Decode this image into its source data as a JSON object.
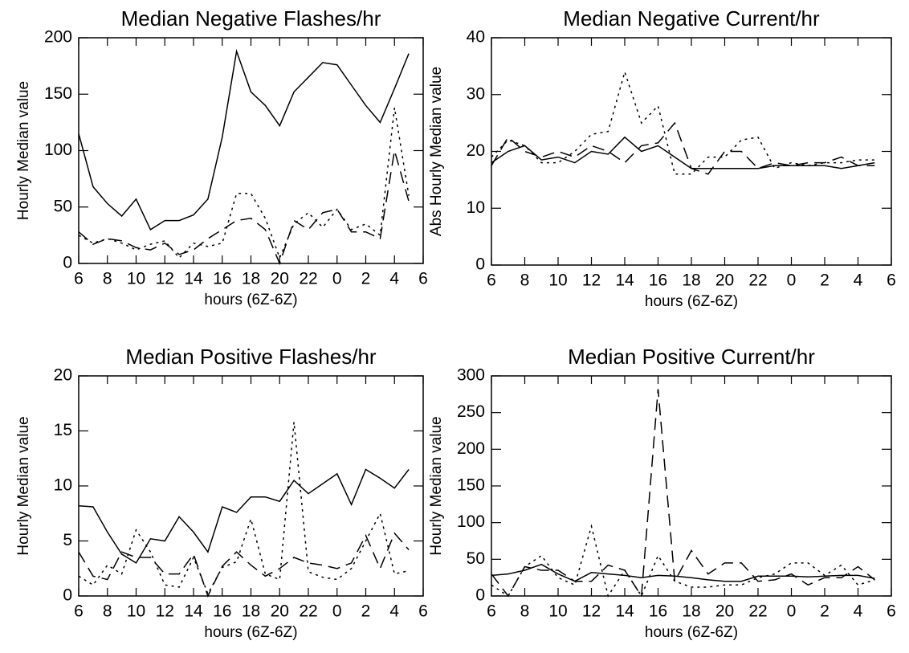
{
  "chart_data": [
    {
      "type": "line",
      "title": "Median Negative Flashes/hr",
      "xlabel": "hours (6Z-6Z)",
      "ylabel": "Hourly Median value",
      "x": [
        6,
        7,
        8,
        9,
        10,
        11,
        12,
        13,
        14,
        15,
        16,
        17,
        18,
        19,
        20,
        21,
        22,
        23,
        24,
        25,
        26,
        27,
        28,
        29
      ],
      "xlim": [
        6,
        30
      ],
      "xticks": [
        6,
        8,
        10,
        12,
        14,
        16,
        18,
        20,
        22,
        {
          "value": 24,
          "label": "0"
        },
        {
          "value": 26,
          "label": "2"
        },
        {
          "value": 28,
          "label": "4"
        },
        {
          "value": 30,
          "label": "6"
        }
      ],
      "ylim": [
        0,
        200
      ],
      "yticks": [
        0,
        50,
        100,
        150,
        200
      ],
      "series": [
        {
          "style": "solid",
          "color": "#000000",
          "values": [
            115,
            68,
            53,
            42,
            57,
            30,
            38,
            38,
            43,
            57,
            112,
            188,
            152,
            140,
            122,
            152,
            165,
            178,
            176,
            158,
            140,
            125,
            155,
            186
          ]
        },
        {
          "style": "dotted",
          "color": "#000000",
          "values": [
            25,
            18,
            22,
            18,
            12,
            17,
            20,
            5,
            18,
            15,
            18,
            62,
            62,
            40,
            5,
            35,
            45,
            32,
            48,
            30,
            35,
            25,
            138,
            60
          ]
        },
        {
          "style": "dashed",
          "color": "#000000",
          "values": [
            28,
            17,
            22,
            20,
            14,
            12,
            18,
            8,
            12,
            22,
            30,
            38,
            40,
            30,
            0,
            38,
            30,
            45,
            48,
            28,
            28,
            22,
            100,
            55
          ]
        }
      ]
    },
    {
      "type": "line",
      "title": "Median Negative Current/hr",
      "xlabel": "hours (6Z-6Z)",
      "ylabel": "Abs Hourly Median value",
      "x": [
        6,
        7,
        8,
        9,
        10,
        11,
        12,
        13,
        14,
        15,
        16,
        17,
        18,
        19,
        20,
        21,
        22,
        23,
        24,
        25,
        26,
        27,
        28,
        29
      ],
      "xlim": [
        6,
        30
      ],
      "xticks": [
        6,
        8,
        10,
        12,
        14,
        16,
        18,
        20,
        22,
        {
          "value": 24,
          "label": "0"
        },
        {
          "value": 26,
          "label": "2"
        },
        {
          "value": 28,
          "label": "4"
        },
        {
          "value": 30,
          "label": "6"
        }
      ],
      "ylim": [
        0,
        40
      ],
      "yticks": [
        0,
        10,
        20,
        30,
        40
      ],
      "series": [
        {
          "style": "solid",
          "color": "#000000",
          "values": [
            18,
            20,
            21,
            18.5,
            19,
            18,
            20,
            19.5,
            22.5,
            20,
            21,
            19,
            17,
            17,
            17,
            17,
            17,
            17.5,
            17.5,
            17.5,
            17.5,
            17,
            17.5,
            18
          ]
        },
        {
          "style": "dotted",
          "color": "#000000",
          "values": [
            19,
            22,
            21,
            18,
            18,
            20,
            23,
            23.5,
            34,
            25,
            28,
            16,
            16,
            19,
            19,
            22,
            22.5,
            17,
            18,
            17.5,
            18,
            18,
            18.5,
            18.5
          ]
        },
        {
          "style": "dashed",
          "color": "#000000",
          "values": [
            17.5,
            22.5,
            20,
            19,
            20,
            19,
            21,
            20,
            18,
            21,
            21.5,
            25,
            17,
            16,
            20,
            20,
            17,
            18,
            17.5,
            18,
            18,
            19,
            17.5,
            17.5
          ]
        }
      ]
    },
    {
      "type": "line",
      "title": "Median Positive Flashes/hr",
      "xlabel": "hours (6Z-6Z)",
      "ylabel": "Hourly Median value",
      "x": [
        6,
        7,
        8,
        9,
        10,
        11,
        12,
        13,
        14,
        15,
        16,
        17,
        18,
        19,
        20,
        21,
        22,
        23,
        24,
        25,
        26,
        27,
        28,
        29
      ],
      "xlim": [
        6,
        30
      ],
      "xticks": [
        6,
        8,
        10,
        12,
        14,
        16,
        18,
        20,
        22,
        {
          "value": 24,
          "label": "0"
        },
        {
          "value": 26,
          "label": "2"
        },
        {
          "value": 28,
          "label": "4"
        },
        {
          "value": 30,
          "label": "6"
        }
      ],
      "ylim": [
        0,
        20
      ],
      "yticks": [
        0,
        5,
        10,
        15,
        20
      ],
      "series": [
        {
          "style": "solid",
          "color": "#000000",
          "values": [
            8.2,
            8.1,
            5.8,
            3.8,
            3,
            5.2,
            5,
            7.2,
            5.8,
            4,
            8.1,
            7.6,
            9,
            9,
            8.6,
            10.5,
            9.3,
            10.2,
            11.1,
            8.3,
            11.5,
            10.7,
            9.8,
            11.5
          ]
        },
        {
          "style": "dotted",
          "color": "#000000",
          "values": [
            1.8,
            1,
            2.8,
            2,
            6,
            4,
            1,
            0.8,
            3.5,
            0.2,
            2.6,
            3.1,
            7,
            2,
            1.5,
            15.8,
            2.2,
            1.7,
            1.5,
            2.5,
            5,
            7.5,
            2,
            2.3
          ]
        },
        {
          "style": "dashed",
          "color": "#000000",
          "values": [
            4,
            1.8,
            1.5,
            4,
            3.5,
            3.5,
            2,
            2,
            3.8,
            0,
            2.7,
            4,
            2.8,
            1.8,
            2.5,
            3.5,
            3,
            2.8,
            2.5,
            3,
            5.5,
            2.5,
            5.7,
            4.2
          ]
        }
      ]
    },
    {
      "type": "line",
      "title": "Median Positive Current/hr",
      "xlabel": "hours (6Z-6Z)",
      "ylabel": "Hourly Median value",
      "x": [
        6,
        7,
        8,
        9,
        10,
        11,
        12,
        13,
        14,
        15,
        16,
        17,
        18,
        19,
        20,
        21,
        22,
        23,
        24,
        25,
        26,
        27,
        28,
        29
      ],
      "xlim": [
        6,
        30
      ],
      "xticks": [
        6,
        8,
        10,
        12,
        14,
        16,
        18,
        20,
        22,
        {
          "value": 24,
          "label": "0"
        },
        {
          "value": 26,
          "label": "2"
        },
        {
          "value": 28,
          "label": "4"
        },
        {
          "value": 30,
          "label": "6"
        }
      ],
      "ylim": [
        0,
        300
      ],
      "yticks": [
        0,
        50,
        100,
        150,
        200,
        250,
        300
      ],
      "series": [
        {
          "style": "solid",
          "color": "#000000",
          "values": [
            28,
            30,
            35,
            43,
            30,
            20,
            32,
            30,
            28,
            25,
            28,
            27,
            25,
            22,
            20,
            20,
            27,
            27,
            27,
            26,
            27,
            28,
            28,
            24
          ]
        },
        {
          "style": "dotted",
          "color": "#000000",
          "values": [
            15,
            0,
            40,
            55,
            25,
            15,
            95,
            0,
            35,
            0,
            55,
            20,
            12,
            12,
            15,
            15,
            25,
            30,
            45,
            45,
            28,
            42,
            15,
            22
          ]
        },
        {
          "style": "dashed",
          "color": "#000000",
          "values": [
            30,
            0,
            40,
            35,
            35,
            20,
            20,
            42,
            35,
            0,
            282,
            20,
            62,
            30,
            45,
            45,
            20,
            22,
            30,
            15,
            25,
            25,
            40,
            22
          ]
        }
      ]
    }
  ]
}
